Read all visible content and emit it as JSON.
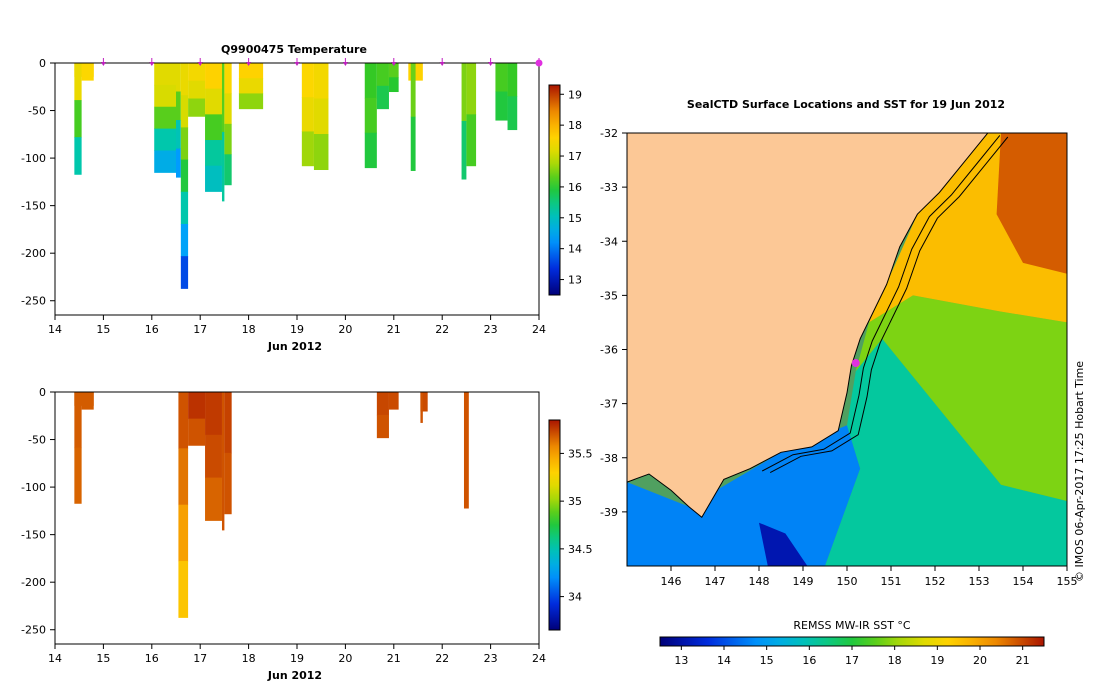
{
  "chart_data": [
    {
      "type": "heatmap",
      "title": "Q9900475  Temperature",
      "xlabel": "Jun 2012",
      "ylabel": "",
      "xlim": [
        14,
        24
      ],
      "ylim": [
        -265,
        0
      ],
      "x_ticks": [
        "14",
        "15",
        "16",
        "17",
        "18",
        "19",
        "20",
        "21",
        "22",
        "23",
        "24"
      ],
      "y_ticks": [
        "0",
        "-50",
        "-100",
        "-150",
        "-200",
        "-250"
      ],
      "surface_marks": [
        15,
        16,
        17,
        18,
        19,
        20,
        21,
        22,
        23,
        24
      ],
      "current_position_day": 24,
      "colorbar": {
        "ticks": [
          "13",
          "14",
          "15",
          "16",
          "17",
          "18",
          "19"
        ],
        "range": [
          12.5,
          19.3
        ]
      },
      "profiles": [
        {
          "x0": 14.4,
          "x1": 14.8,
          "depth": 14,
          "tops": [
            17.6,
            17.6
          ]
        },
        {
          "x0": 14.4,
          "x1": 14.55,
          "depth": 117,
          "tops": [
            17.3,
            16.2,
            15.2
          ]
        },
        {
          "x0": 14.55,
          "x1": 14.8,
          "depth": 18,
          "tops": [
            17.5
          ]
        },
        {
          "x0": 16.05,
          "x1": 16.5,
          "depth": 115,
          "tops": [
            17.2,
            17.1,
            16.3,
            15.2,
            14.6
          ]
        },
        {
          "x0": 16.5,
          "x1": 16.6,
          "depth": 120,
          "tops": [
            17.2,
            16.3,
            15.1,
            14.3
          ]
        },
        {
          "x0": 16.6,
          "x1": 16.75,
          "depth": 237,
          "tops": [
            17.3,
            17.1,
            16.5,
            15.9,
            15.2,
            14.4,
            13.6
          ]
        },
        {
          "x0": 16.75,
          "x1": 17.1,
          "depth": 56,
          "tops": [
            17.4,
            17.2,
            16.6
          ]
        },
        {
          "x0": 17.1,
          "x1": 17.45,
          "depth": 135,
          "tops": [
            17.6,
            17.2,
            16.2,
            15.3,
            15.0
          ]
        },
        {
          "x0": 17.45,
          "x1": 17.5,
          "depth": 145,
          "tops": [
            16.3,
            15.3
          ]
        },
        {
          "x0": 17.5,
          "x1": 17.65,
          "depth": 128,
          "tops": [
            17.5,
            17.2,
            16.5,
            15.6
          ]
        },
        {
          "x0": 17.8,
          "x1": 18.3,
          "depth": 48,
          "tops": [
            17.6,
            17.3,
            16.6
          ]
        },
        {
          "x0": 19.1,
          "x1": 19.35,
          "depth": 108,
          "tops": [
            17.5,
            17.3,
            16.7
          ]
        },
        {
          "x0": 19.35,
          "x1": 19.65,
          "depth": 112,
          "tops": [
            17.4,
            17.2,
            16.6
          ]
        },
        {
          "x0": 20.4,
          "x1": 20.65,
          "depth": 110,
          "tops": [
            16.1,
            16.2,
            15.9
          ]
        },
        {
          "x0": 20.65,
          "x1": 20.9,
          "depth": 48,
          "tops": [
            16.2,
            15.8
          ]
        },
        {
          "x0": 20.9,
          "x1": 21.1,
          "depth": 30,
          "tops": [
            16.3,
            16.0
          ]
        },
        {
          "x0": 21.3,
          "x1": 21.6,
          "depth": 18,
          "tops": [
            17.6
          ]
        },
        {
          "x0": 21.35,
          "x1": 21.45,
          "depth": 113,
          "tops": [
            16.4,
            15.9
          ]
        },
        {
          "x0": 22.4,
          "x1": 22.5,
          "depth": 122,
          "tops": [
            16.5,
            15.6
          ]
        },
        {
          "x0": 22.5,
          "x1": 22.7,
          "depth": 108,
          "tops": [
            16.6,
            16.2
          ]
        },
        {
          "x0": 23.1,
          "x1": 23.35,
          "depth": 60,
          "tops": [
            16.2,
            15.9
          ]
        },
        {
          "x0": 23.35,
          "x1": 23.55,
          "depth": 70,
          "tops": [
            16.1,
            15.8
          ]
        }
      ]
    },
    {
      "type": "heatmap",
      "title": "",
      "xlabel": "Jun 2012",
      "ylabel": "",
      "xlim": [
        14,
        24
      ],
      "ylim": [
        -265,
        0
      ],
      "x_ticks": [
        "14",
        "15",
        "16",
        "17",
        "18",
        "19",
        "20",
        "21",
        "22",
        "23",
        "24"
      ],
      "y_ticks": [
        "0",
        "-50",
        "-100",
        "-150",
        "-200",
        "-250"
      ],
      "colorbar": {
        "ticks": [
          "34",
          "34.5",
          "35",
          "35.5"
        ],
        "range": [
          33.65,
          35.85
        ]
      },
      "profiles": [
        {
          "x0": 14.4,
          "x1": 14.8,
          "depth": 14,
          "tops": [
            35.68
          ]
        },
        {
          "x0": 14.4,
          "x1": 14.55,
          "depth": 117,
          "tops": [
            35.68,
            35.66
          ]
        },
        {
          "x0": 14.55,
          "x1": 14.8,
          "depth": 18,
          "tops": [
            35.68
          ]
        },
        {
          "x0": 16.55,
          "x1": 16.75,
          "depth": 237,
          "tops": [
            35.7,
            35.62,
            35.5,
            35.35
          ]
        },
        {
          "x0": 16.75,
          "x1": 17.1,
          "depth": 56,
          "tops": [
            35.78,
            35.7
          ]
        },
        {
          "x0": 17.1,
          "x1": 17.45,
          "depth": 135,
          "tops": [
            35.76,
            35.72,
            35.66
          ]
        },
        {
          "x0": 17.45,
          "x1": 17.5,
          "depth": 145,
          "tops": [
            35.7
          ]
        },
        {
          "x0": 17.5,
          "x1": 17.65,
          "depth": 128,
          "tops": [
            35.74,
            35.7
          ]
        },
        {
          "x0": 20.65,
          "x1": 20.9,
          "depth": 48,
          "tops": [
            35.73,
            35.7
          ]
        },
        {
          "x0": 20.9,
          "x1": 21.1,
          "depth": 18,
          "tops": [
            35.72
          ]
        },
        {
          "x0": 21.55,
          "x1": 21.7,
          "depth": 20,
          "tops": [
            35.72
          ]
        },
        {
          "x0": 21.55,
          "x1": 21.6,
          "depth": 32,
          "tops": [
            35.7
          ]
        },
        {
          "x0": 22.45,
          "x1": 22.55,
          "depth": 122,
          "tops": [
            35.7
          ]
        }
      ]
    },
    {
      "type": "heatmap",
      "title": "SealCTD Surface Locations and SST for 19 Jun 2012",
      "xlabel": "",
      "ylabel": "",
      "xlim": [
        145,
        155
      ],
      "ylim": [
        -40,
        -32
      ],
      "x_ticks": [
        "146",
        "147",
        "148",
        "149",
        "150",
        "151",
        "152",
        "153",
        "154",
        "155"
      ],
      "y_ticks": [
        "-32",
        "-33",
        "-34",
        "-35",
        "-36",
        "-37",
        "-38",
        "-39"
      ],
      "colorbar_label": "REMSS MW-IR SST °C",
      "colorbar": {
        "ticks": [
          "13",
          "14",
          "15",
          "16",
          "17",
          "18",
          "19",
          "20",
          "21"
        ],
        "range": [
          12.5,
          21.5
        ]
      },
      "seal_location": {
        "lon": 150.2,
        "lat": -36.25
      },
      "coastline": [
        [
          145,
          -38.45
        ],
        [
          145.5,
          -38.3
        ],
        [
          146,
          -38.6
        ],
        [
          146.4,
          -38.9
        ],
        [
          146.7,
          -39.1
        ],
        [
          147.2,
          -38.4
        ],
        [
          147.8,
          -38.2
        ],
        [
          148.5,
          -37.9
        ],
        [
          149.2,
          -37.8
        ],
        [
          149.8,
          -37.5
        ],
        [
          150.0,
          -36.8
        ],
        [
          150.1,
          -36.3
        ],
        [
          150.3,
          -35.8
        ],
        [
          150.6,
          -35.3
        ],
        [
          150.9,
          -34.8
        ],
        [
          151.2,
          -34.1
        ],
        [
          151.6,
          -33.5
        ],
        [
          152.1,
          -33.1
        ],
        [
          152.7,
          -32.5
        ],
        [
          153.2,
          -32
        ]
      ],
      "sst_zones": [
        {
          "poly": [
            [
              145,
              -40
            ],
            [
              145,
              -38.45
            ],
            [
              146.4,
              -38.9
            ],
            [
              148.5,
              -37.9
            ],
            [
              150.0,
              -37.4
            ],
            [
              150.3,
              -38.2
            ],
            [
              149.5,
              -40
            ]
          ],
          "temp": 14.6
        },
        {
          "poly": [
            [
              148.2,
              -40
            ],
            [
              148.0,
              -39.2
            ],
            [
              148.6,
              -39.4
            ],
            [
              149.1,
              -40
            ]
          ],
          "temp": 13.1
        },
        {
          "poly": [
            [
              149.5,
              -40
            ],
            [
              150.3,
              -38.2
            ],
            [
              150.0,
              -37.4
            ],
            [
              150.2,
              -36.4
            ],
            [
              150.8,
              -35.8
            ],
            [
              151.5,
              -36.5
            ],
            [
              152.5,
              -37.5
            ],
            [
              153.5,
              -38.5
            ],
            [
              155,
              -38.8
            ],
            [
              155,
              -40
            ]
          ],
          "temp": 16.2
        },
        {
          "poly": [
            [
              150.2,
              -36.4
            ],
            [
              150.5,
              -35.5
            ],
            [
              151.5,
              -35.0
            ],
            [
              153.5,
              -35.3
            ],
            [
              155,
              -35.5
            ],
            [
              155,
              -38.8
            ],
            [
              153.5,
              -38.5
            ],
            [
              152.5,
              -37.5
            ],
            [
              151.5,
              -36.5
            ],
            [
              150.8,
              -35.8
            ]
          ],
          "temp": 17.8
        },
        {
          "poly": [
            [
              150.5,
              -35.5
            ],
            [
              151.0,
              -34.6
            ],
            [
              151.6,
              -33.5
            ],
            [
              152.6,
              -32.6
            ],
            [
              153.2,
              -32
            ],
            [
              155,
              -32
            ],
            [
              155,
              -35.5
            ],
            [
              153.5,
              -35.3
            ],
            [
              151.5,
              -35.0
            ]
          ],
          "temp": 19.6
        },
        {
          "poly": [
            [
              153.5,
              -32
            ],
            [
              155,
              -32
            ],
            [
              155,
              -34.6
            ],
            [
              154,
              -34.4
            ],
            [
              153.4,
              -33.5
            ]
          ],
          "temp": 20.8
        }
      ]
    }
  ],
  "watermark": "©  IMOS 06-Apr-2017 17:25 Hobart Time"
}
